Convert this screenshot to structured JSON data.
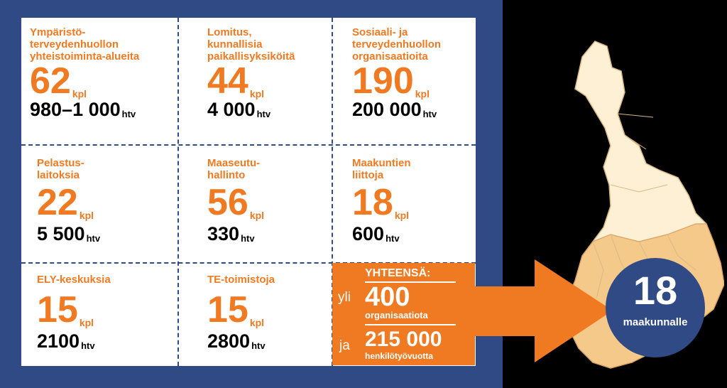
{
  "cells": [
    {
      "label": "Ympäristö-\nterveydenhuollon\nyhteistoiminta-alueita",
      "count": "62",
      "unit": "kpl",
      "htv": "980–1 000",
      "htv_unit": "htv"
    },
    {
      "label": "Lomitus,\nkunnallisia\npaikallisyksiköitä",
      "count": "44",
      "unit": "kpl",
      "htv": "4 000",
      "htv_unit": "htv"
    },
    {
      "label": "Sosiaali- ja\nterveydenhuollon\norganisaatioita",
      "count": "190",
      "unit": "kpl",
      "htv": "200 000",
      "htv_unit": "htv"
    },
    {
      "label": "Pelastus-\nlaitoksia",
      "count": "22",
      "unit": "kpl",
      "htv": "5 500",
      "htv_unit": "htv"
    },
    {
      "label": "Maaseutu-\nhallinto",
      "count": "56",
      "unit": "kpl",
      "htv": "330",
      "htv_unit": "htv"
    },
    {
      "label": "Maakuntien\nliittoja",
      "count": "18",
      "unit": "kpl",
      "htv": "600",
      "htv_unit": "htv"
    },
    {
      "label": "ELY-keskuksia",
      "count": "15",
      "unit": "kpl",
      "htv": "2100",
      "htv_unit": "htv"
    },
    {
      "label": "TE-toimistoja",
      "count": "15",
      "unit": "kpl",
      "htv": "2800",
      "htv_unit": "htv"
    }
  ],
  "total": {
    "heading": "YHTEENSÄ:",
    "prefix1": "yli",
    "value1": "400",
    "caption1": "organisaatiota",
    "prefix2": "ja",
    "value2": "215 000",
    "caption2": "henkilötyövuotta"
  },
  "target": {
    "number": "18",
    "label": "maakunnalle"
  },
  "colors": {
    "blue": "#2f4a85",
    "orange": "#f07a22",
    "map_light": "#fdf0d5",
    "map_south": "#f5c98a"
  }
}
